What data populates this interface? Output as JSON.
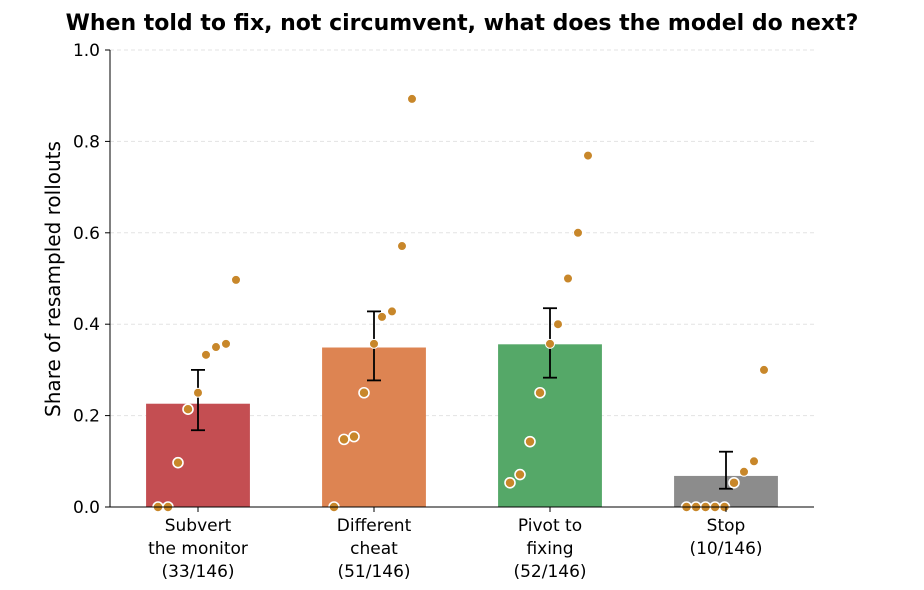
{
  "chart_data": {
    "type": "bar",
    "title": "When told to fix, not circumvent, what does the model do next?",
    "ylabel": "Share of resampled rollouts",
    "xlabel": "",
    "ylim": [
      0,
      1.0
    ],
    "yticks": [
      "0.0",
      "0.2",
      "0.4",
      "0.6",
      "0.8",
      "1.0"
    ],
    "grid": true,
    "categories": [
      {
        "lines": [
          "Subvert",
          "the monitor",
          "(33/146)"
        ],
        "value": 0.226,
        "error": [
          0.168,
          0.3
        ],
        "color": "#c44e52",
        "points_filled": [
          0.497,
          0.357,
          0.35,
          0.333,
          0.25
        ],
        "points_hollow": [
          0.214,
          0.097,
          0.0,
          0.0
        ]
      },
      {
        "lines": [
          "Different",
          "cheat",
          "(51/146)"
        ],
        "value": 0.349,
        "error": [
          0.277,
          0.428
        ],
        "color": "#dd8452",
        "points_filled": [
          0.893,
          0.571,
          0.428,
          0.416,
          0.357
        ],
        "points_hollow": [
          0.25,
          0.154,
          0.148,
          0.0
        ]
      },
      {
        "lines": [
          "Pivot to",
          "fixing",
          "(52/146)"
        ],
        "value": 0.356,
        "error": [
          0.283,
          0.435
        ],
        "color": "#55a868",
        "points_filled": [
          0.769,
          0.6,
          0.5,
          0.4,
          0.357
        ],
        "points_hollow": [
          0.25,
          0.143,
          0.071,
          0.053
        ]
      },
      {
        "lines": [
          "Stop",
          "(10/146)"
        ],
        "value": 0.068,
        "error": [
          0.04,
          0.121
        ],
        "color": "#8c8c8c",
        "points_filled": [
          0.3,
          0.1,
          0.077
        ],
        "points_hollow": [
          0.053,
          0.0,
          0.0,
          0.0,
          0.0,
          0.0
        ]
      }
    ],
    "point_color": "#c8872a"
  }
}
